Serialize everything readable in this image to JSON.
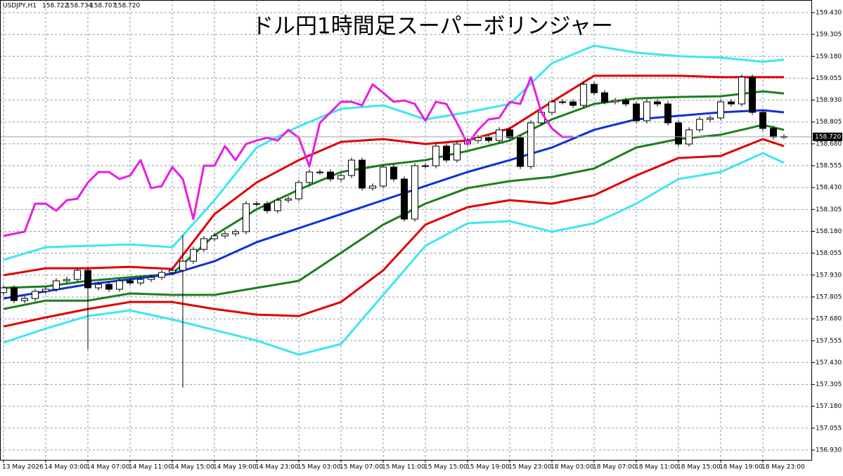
{
  "chart_data": {
    "type": "candlestick",
    "title": "ドル円1時間足スーパーボリンジャー",
    "symbol": "USDJPY,H1",
    "ohlc_labels": [
      "158.722",
      "158.734",
      "158.707",
      "158.720"
    ],
    "categories": [
      "13 May 2026",
      null,
      null,
      null,
      "14 May 03:00",
      null,
      null,
      null,
      "14 May 07:00",
      null,
      null,
      null,
      "14 May 11:00",
      null,
      null,
      null,
      "14 May 15:00",
      null,
      null,
      null,
      "14 May 19:00",
      null,
      null,
      null,
      "14 May 23:00",
      null,
      null,
      null,
      "15 May 03:00",
      null,
      null,
      null,
      "15 May 07:00",
      null,
      null,
      null,
      "15 May 11:00",
      null,
      null,
      null,
      "15 May 15:00",
      null,
      null,
      null,
      "15 May 19:00",
      null,
      null,
      null,
      "15 May 23:00",
      null,
      null,
      null,
      "18 May 03:00",
      null,
      null,
      null,
      "18 May 07:00",
      null,
      null,
      null,
      "18 May 11:00",
      null,
      null,
      null,
      "18 May 15:00",
      null,
      null,
      null,
      "18 May 19:00",
      null,
      null,
      null,
      "18 May 23:00",
      null,
      null
    ],
    "open": [
      157.83,
      157.857,
      157.784,
      157.796,
      157.837,
      157.849,
      157.897,
      157.905,
      157.957,
      157.857,
      157.877,
      157.849,
      157.897,
      157.885,
      157.905,
      157.917,
      157.945,
      157.957,
      158.009,
      158.077,
      158.138,
      158.154,
      158.166,
      158.178,
      158.338,
      158.338,
      158.298,
      158.358,
      158.366,
      158.459,
      158.519,
      158.519,
      158.479,
      158.499,
      158.587,
      158.427,
      158.439,
      158.547,
      158.479,
      158.25,
      158.555,
      158.555,
      158.667,
      158.587,
      158.679,
      158.699,
      158.715,
      158.699,
      158.76,
      158.715,
      158.551,
      158.8,
      158.86,
      158.92,
      158.92,
      158.9,
      159.02,
      158.972,
      158.92,
      158.928,
      158.908,
      158.812,
      158.92,
      158.908,
      158.8,
      158.679,
      158.76,
      158.82,
      158.828,
      158.92,
      158.908,
      159.061,
      158.86,
      158.768,
      158.722
    ],
    "high": [
      157.872,
      157.872,
      157.811,
      157.852,
      157.864,
      157.912,
      157.92,
      157.972,
      157.972,
      157.892,
      157.892,
      157.912,
      157.912,
      157.92,
      157.932,
      157.96,
      157.972,
      158.158,
      158.092,
      158.153,
      158.169,
      158.181,
      158.193,
      158.353,
      158.353,
      158.353,
      158.373,
      158.381,
      158.474,
      158.534,
      158.534,
      158.534,
      158.514,
      158.602,
      158.602,
      158.454,
      158.562,
      158.562,
      158.494,
      158.57,
      158.57,
      158.682,
      158.682,
      158.694,
      158.714,
      158.73,
      158.73,
      158.775,
      158.775,
      158.73,
      158.815,
      158.875,
      158.935,
      158.935,
      158.935,
      159.035,
      159.035,
      158.987,
      158.943,
      158.943,
      158.923,
      158.935,
      158.935,
      158.923,
      158.815,
      158.775,
      158.835,
      158.843,
      158.935,
      158.935,
      159.076,
      159.076,
      158.875,
      158.783,
      158.734
    ],
    "low": [
      157.815,
      157.769,
      157.769,
      157.781,
      157.822,
      157.834,
      157.882,
      157.89,
      157.504,
      157.842,
      157.834,
      157.834,
      157.87,
      157.87,
      157.89,
      157.902,
      157.93,
      157.287,
      157.994,
      158.062,
      158.123,
      158.139,
      158.151,
      158.163,
      158.323,
      158.283,
      158.283,
      158.343,
      158.351,
      158.444,
      158.504,
      158.464,
      158.464,
      158.484,
      158.412,
      158.412,
      158.424,
      158.464,
      158.235,
      158.235,
      158.54,
      158.54,
      158.572,
      158.572,
      158.664,
      158.684,
      158.684,
      158.684,
      158.7,
      158.536,
      158.536,
      158.785,
      158.845,
      158.905,
      158.885,
      158.885,
      158.957,
      158.905,
      158.905,
      158.893,
      158.797,
      158.797,
      158.893,
      158.785,
      158.664,
      158.664,
      158.745,
      158.805,
      158.813,
      158.893,
      158.893,
      158.845,
      158.753,
      158.704,
      158.707
    ],
    "close": [
      157.857,
      157.784,
      157.796,
      157.837,
      157.849,
      157.897,
      157.905,
      157.957,
      157.857,
      157.877,
      157.849,
      157.897,
      157.885,
      157.905,
      157.917,
      157.945,
      157.957,
      158.009,
      158.077,
      158.138,
      158.154,
      158.166,
      158.178,
      158.338,
      158.338,
      158.298,
      158.358,
      158.366,
      158.459,
      158.519,
      158.519,
      158.479,
      158.499,
      158.587,
      158.427,
      158.439,
      158.547,
      158.479,
      158.25,
      158.555,
      158.555,
      158.667,
      158.587,
      158.679,
      158.699,
      158.715,
      158.699,
      158.76,
      158.715,
      158.551,
      158.8,
      158.86,
      158.92,
      158.92,
      158.9,
      159.02,
      158.972,
      158.92,
      158.928,
      158.908,
      158.812,
      158.92,
      158.908,
      158.8,
      158.679,
      158.76,
      158.82,
      158.828,
      158.92,
      158.908,
      159.061,
      158.86,
      158.768,
      158.719,
      158.72
    ],
    "bull_color": "#ffffff",
    "bear_color": "#000000",
    "ylim": [
      156.874,
      159.502
    ],
    "yticks": [
      {
        "value": 159.43,
        "label": "159.430"
      },
      159.305,
      {
        "value": 159.18,
        "label": "159.180"
      },
      159.055,
      {
        "value": 158.93,
        "label": "158.930"
      },
      158.805,
      {
        "value": 158.68,
        "label": "158.680"
      },
      158.555,
      {
        "value": 158.43,
        "label": "158.430"
      },
      158.305,
      {
        "value": 158.18,
        "label": "158.180"
      },
      158.055,
      {
        "value": 157.93,
        "label": "157.930"
      },
      157.805,
      {
        "value": 157.68,
        "label": "157.680"
      },
      157.555,
      {
        "value": 157.43,
        "label": "157.430"
      },
      157.305,
      {
        "value": 157.18,
        "label": "157.180"
      },
      157.055,
      {
        "value": 156.93,
        "label": "156.930"
      }
    ],
    "grid": true,
    "current_price": {
      "value": 158.72,
      "label": "158.720"
    },
    "band_x": [
      0,
      4,
      8,
      12,
      16,
      20,
      24,
      28,
      32,
      36,
      40,
      44,
      48,
      52,
      56,
      60,
      64,
      68,
      72,
      74
    ],
    "bands": [
      {
        "color": "#3ee6f0",
        "values": [
          158.017,
          158.089,
          158.097,
          158.105,
          158.089,
          158.358,
          158.659,
          158.78,
          158.88,
          158.9,
          158.82,
          158.86,
          158.908,
          159.141,
          159.241,
          159.201,
          159.181,
          159.173,
          159.149,
          159.161
        ]
      },
      {
        "color": "#e00000",
        "values": [
          157.929,
          157.969,
          157.969,
          157.977,
          157.965,
          158.278,
          158.459,
          158.587,
          158.691,
          158.707,
          158.679,
          158.699,
          158.768,
          158.92,
          159.069,
          159.069,
          159.069,
          159.061,
          159.061,
          159.061
        ]
      },
      {
        "color": "#1c7f1c",
        "values": [
          157.857,
          157.865,
          157.897,
          157.917,
          157.937,
          158.158,
          158.306,
          158.418,
          158.519,
          158.559,
          158.587,
          158.639,
          158.699,
          158.82,
          158.908,
          158.94,
          158.948,
          158.952,
          158.98,
          158.968
        ]
      },
      {
        "color": "#1030d8",
        "values": [
          157.796,
          157.837,
          157.877,
          157.905,
          157.937,
          158.009,
          158.118,
          158.198,
          158.278,
          158.358,
          158.439,
          158.519,
          158.587,
          158.659,
          158.76,
          158.82,
          158.84,
          158.86,
          158.872,
          158.86
        ]
      },
      {
        "color": "#1c7f1c",
        "values": [
          157.736,
          157.784,
          157.784,
          157.825,
          157.817,
          157.817,
          157.857,
          157.897,
          158.057,
          158.218,
          158.338,
          158.427,
          158.467,
          158.491,
          158.539,
          158.659,
          158.707,
          158.732,
          158.788,
          158.76
        ]
      },
      {
        "color": "#e00000",
        "values": [
          157.636,
          157.688,
          157.736,
          157.776,
          157.776,
          157.736,
          157.704,
          157.696,
          157.776,
          157.957,
          158.218,
          158.318,
          158.358,
          158.338,
          158.386,
          158.499,
          158.599,
          158.611,
          158.707,
          158.667
        ]
      },
      {
        "color": "#3ee6f0",
        "values": [
          157.544,
          157.624,
          157.696,
          157.728,
          157.676,
          157.616,
          157.556,
          157.475,
          157.536,
          157.817,
          158.097,
          158.226,
          158.238,
          158.178,
          158.226,
          158.338,
          158.479,
          158.519,
          158.627,
          158.571
        ]
      }
    ],
    "lagging": {
      "color": "#e81ee0",
      "values": [
        158.154,
        158.166,
        158.178,
        158.338,
        158.338,
        158.298,
        158.358,
        158.366,
        158.459,
        158.519,
        158.519,
        158.479,
        158.499,
        158.587,
        158.427,
        158.439,
        158.547,
        158.479,
        158.25,
        158.555,
        158.555,
        158.667,
        158.587,
        158.679,
        158.699,
        158.715,
        158.699,
        158.76,
        158.715,
        158.551,
        158.8,
        158.86,
        158.92,
        158.92,
        158.9,
        159.02,
        158.972,
        158.92,
        158.928,
        158.908,
        158.812,
        158.92,
        158.908,
        158.8,
        158.679,
        158.76,
        158.82,
        158.828,
        158.92,
        158.908,
        159.061,
        158.86,
        158.768,
        158.719,
        158.72,
        null,
        null,
        null,
        null,
        null,
        null,
        null,
        null,
        null,
        null,
        null,
        null,
        null,
        null,
        null,
        null,
        null,
        null,
        null,
        null
      ]
    }
  }
}
